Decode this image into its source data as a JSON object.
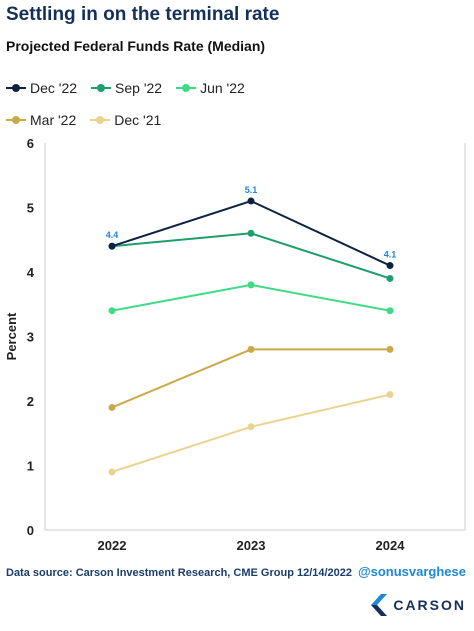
{
  "header": {
    "title": "Settling in on the terminal rate",
    "subtitle": "Projected Federal Funds Rate (Median)"
  },
  "footer": {
    "source": "Data source: Carson Investment Research, CME Group    12/14/2022",
    "handle": "@sonusvarghese",
    "logo_text": "CARSON"
  },
  "chart_data": {
    "type": "line",
    "ylabel": "Percent",
    "xlabel": "",
    "x": [
      "2022",
      "2023",
      "2024"
    ],
    "ylim": [
      0,
      6
    ],
    "yticks": [
      0,
      1,
      2,
      3,
      4,
      5,
      6
    ],
    "grid": false,
    "legend_placement": "top",
    "series": [
      {
        "name": "Dec '22",
        "color": "#0d2240",
        "values": [
          4.4,
          5.1,
          4.1
        ],
        "labels": [
          "4.4",
          "5.1",
          "4.1"
        ]
      },
      {
        "name": "Sep '22",
        "color": "#1e9e6a",
        "values": [
          4.4,
          4.6,
          3.9
        ]
      },
      {
        "name": "Jun '22",
        "color": "#3ddc84",
        "values": [
          3.4,
          3.8,
          3.4
        ]
      },
      {
        "name": "Mar '22",
        "color": "#c9a94a",
        "values": [
          1.9,
          2.8,
          2.8
        ]
      },
      {
        "name": "Dec '21",
        "color": "#ead38e",
        "values": [
          0.9,
          1.6,
          2.1
        ]
      }
    ],
    "label_color": "#1e88d8"
  }
}
